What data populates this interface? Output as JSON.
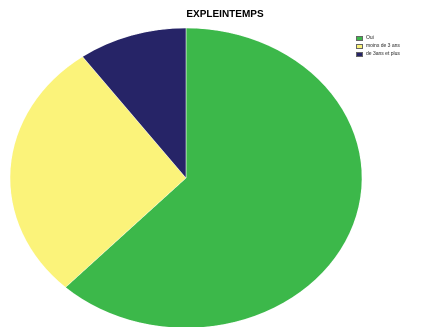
{
  "chart_data": {
    "type": "pie",
    "title": "EXPLEINTEMPS",
    "categories": [
      "Oui",
      "moins de 3 ans",
      "de 3ans et plus"
    ],
    "values": [
      62,
      28,
      10
    ],
    "colors": [
      "#3cb84a",
      "#fbf37a",
      "#262467"
    ],
    "start_angle_deg": 0,
    "direction": "clockwise",
    "legend": "top-right"
  }
}
